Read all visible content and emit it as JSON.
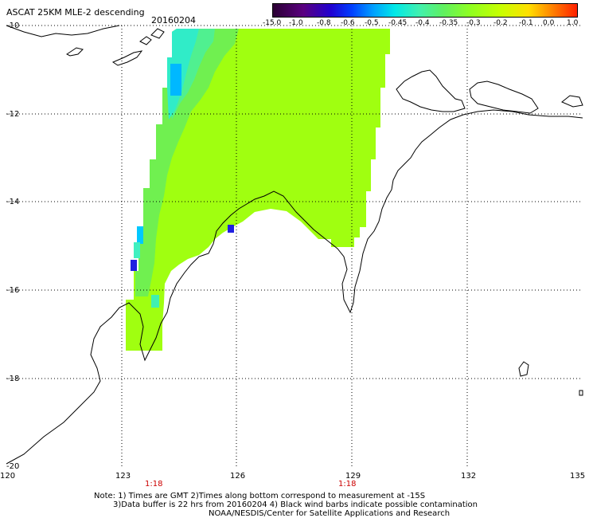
{
  "header": {
    "title": "ASCAT 25KM MLE-2 descending",
    "date": "20160204"
  },
  "colorbar": {
    "labels": [
      "-15.0",
      "-1.0",
      "-0.8",
      "-0.6",
      "-0.5",
      "-0.45",
      "-0.4",
      "-0.35",
      "-0.3",
      "-0.2",
      "-0.1",
      "0.0",
      "1.0"
    ],
    "colors": [
      "#2b0033",
      "#5a0080",
      "#2000d0",
      "#0040ff",
      "#00a0ff",
      "#00e8e8",
      "#40f0b0",
      "#60f060",
      "#90ff20",
      "#c8ff00",
      "#ffe000",
      "#ff8000",
      "#ff2000"
    ]
  },
  "map": {
    "lat_labels": [
      "-10",
      "-12",
      "-14",
      "-16",
      "-18",
      "-20"
    ],
    "lon_labels": [
      "120",
      "123",
      "126",
      "129",
      "132",
      "135"
    ],
    "time_labels": [
      "1:18",
      "1:18"
    ]
  },
  "notes": {
    "line1": "Note: 1) Times are GMT 2)Times along bottom correspond to measurement at -15S",
    "line2": "3)Data buffer is 22 hrs from 20160204 4) Black wind barbs indicate possible contamination",
    "line3": "NOAA/NESDIS/Center for Satellite Applications and Research"
  }
}
